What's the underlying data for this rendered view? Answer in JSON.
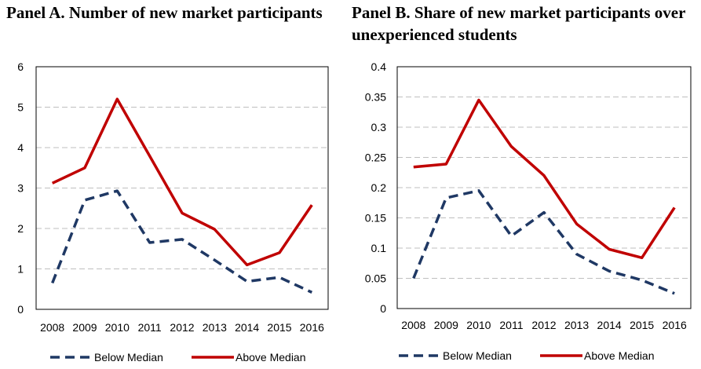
{
  "chart_data": [
    {
      "type": "line",
      "title": "Panel A. Number of new market participants",
      "categories": [
        "2008",
        "2009",
        "2010",
        "2011",
        "2012",
        "2013",
        "2014",
        "2015",
        "2016"
      ],
      "yticks": [
        "0",
        "1",
        "2",
        "3",
        "4",
        "5",
        "6"
      ],
      "ylim": [
        0,
        6
      ],
      "grid": true,
      "legend": "bottom",
      "series": [
        {
          "name": "Below Median",
          "color": "#1f3864",
          "dash": true,
          "values": [
            0.65,
            2.7,
            2.93,
            1.65,
            1.73,
            1.22,
            0.69,
            0.79,
            0.42
          ]
        },
        {
          "name": "Above Median",
          "color": "#c00000",
          "dash": false,
          "values": [
            3.12,
            3.5,
            5.2,
            3.79,
            2.38,
            1.98,
            1.1,
            1.4,
            2.58
          ]
        }
      ]
    },
    {
      "type": "line",
      "title": "Panel B. Share of new market participants over unexperienced students",
      "categories": [
        "2008",
        "2009",
        "2010",
        "2011",
        "2012",
        "2013",
        "2014",
        "2015",
        "2016"
      ],
      "yticks": [
        "0",
        "0.05",
        "0.1",
        "0.15",
        "0.2",
        "0.25",
        "0.3",
        "0.35",
        "0.4"
      ],
      "ylim": [
        0,
        0.4
      ],
      "grid": true,
      "legend": "bottom",
      "series": [
        {
          "name": "Below Median",
          "color": "#1f3864",
          "dash": true,
          "values": [
            0.05,
            0.183,
            0.195,
            0.12,
            0.159,
            0.09,
            0.062,
            0.047,
            0.025
          ]
        },
        {
          "name": "Above Median",
          "color": "#c00000",
          "dash": false,
          "values": [
            0.234,
            0.239,
            0.345,
            0.268,
            0.22,
            0.14,
            0.098,
            0.084,
            0.167
          ]
        }
      ]
    }
  ]
}
